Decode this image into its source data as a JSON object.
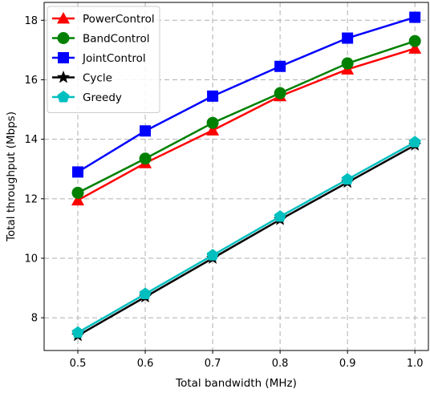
{
  "chart_data": {
    "type": "line",
    "xlabel": "Total bandwidth (MHz)",
    "ylabel": "Total throughput (Mbps)",
    "x": [
      0.5,
      0.6,
      0.7,
      0.8,
      0.9,
      1.0
    ],
    "x_ticks": [
      "0.5",
      "0.6",
      "0.7",
      "0.8",
      "0.9",
      "1.0"
    ],
    "y_ticks": [
      "8",
      "10",
      "12",
      "14",
      "16",
      "18"
    ],
    "xlim": [
      0.45,
      1.02
    ],
    "ylim": [
      6.9,
      18.6
    ],
    "grid": true,
    "legend_position": "top-left",
    "series": [
      {
        "name": "PowerControl",
        "color": "#ff0000",
        "marker": "triangle-up",
        "values": [
          11.95,
          13.2,
          14.3,
          15.45,
          16.35,
          17.05
        ]
      },
      {
        "name": "BandControl",
        "color": "#008000",
        "marker": "circle",
        "values": [
          12.2,
          13.35,
          14.55,
          15.55,
          16.55,
          17.3
        ]
      },
      {
        "name": "JointControl",
        "color": "#0000ff",
        "marker": "square",
        "values": [
          12.9,
          14.28,
          15.45,
          16.45,
          17.4,
          18.1
        ]
      },
      {
        "name": "Cycle",
        "color": "#000000",
        "marker": "star",
        "values": [
          7.4,
          8.7,
          10.0,
          11.3,
          12.55,
          13.8
        ]
      },
      {
        "name": "Greedy",
        "color": "#00bfbf",
        "marker": "pentagon",
        "values": [
          7.5,
          8.8,
          10.1,
          11.4,
          12.65,
          13.9
        ]
      }
    ]
  }
}
